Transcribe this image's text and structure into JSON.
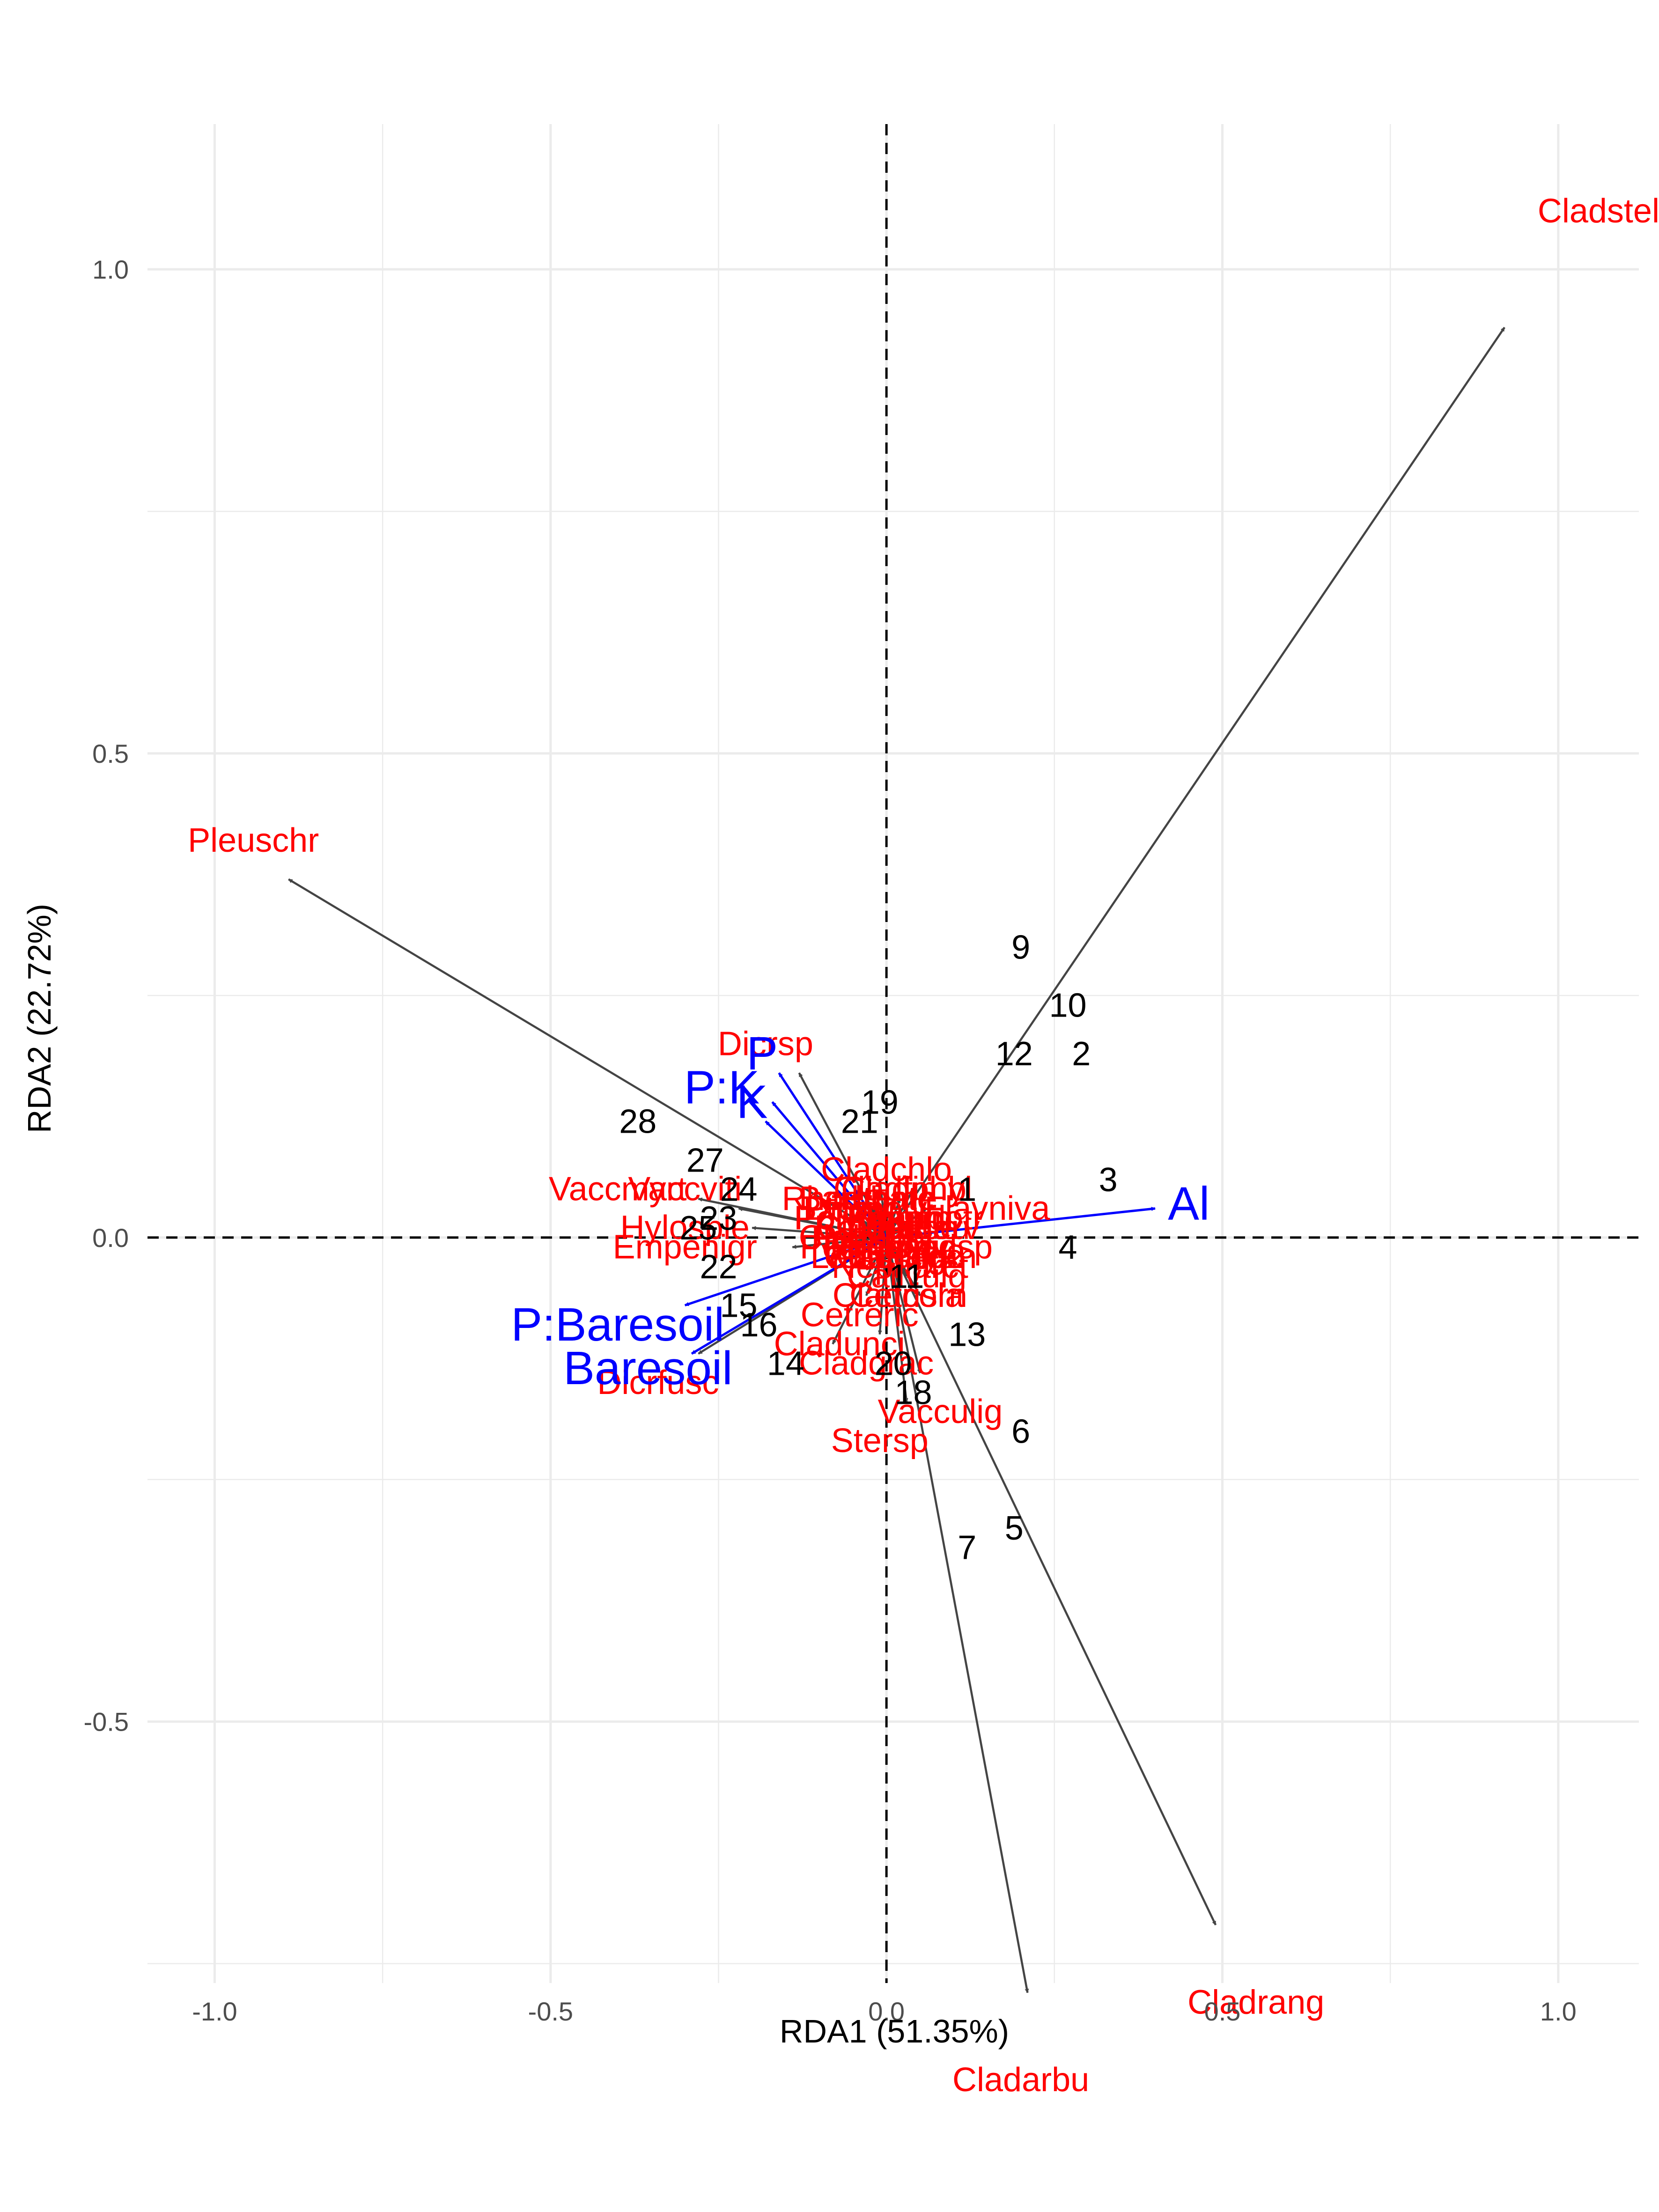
{
  "chart_data": {
    "type": "scatter",
    "xlabel": "RDA1 (51.35%)",
    "ylabel": "RDA2 (22.72%)",
    "xlim": [
      -1.0,
      1.0
    ],
    "ylim": [
      -0.5,
      1.0
    ],
    "xticks": [
      -1.0,
      -0.5,
      0.0,
      0.5,
      1.0
    ],
    "yticks": [
      -0.5,
      0.0,
      0.5,
      1.0
    ],
    "x_tick_labels": [
      "-1.0",
      "-0.5",
      "0.0",
      "0.5",
      "1.0"
    ],
    "y_tick_labels": [
      "-0.5",
      "0.0",
      "0.5",
      "1.0"
    ],
    "grid": true,
    "reference_lines": {
      "x": 0,
      "y": 0,
      "style": "dashed"
    },
    "colors": {
      "sites": "#000000",
      "species": "#ff0000",
      "species_arrows": "#444444",
      "environment": "#0000ff",
      "grid": "#ebebeb"
    },
    "site_scores": [
      {
        "label": "9",
        "x": 0.2,
        "y": 0.3
      },
      {
        "label": "10",
        "x": 0.27,
        "y": 0.24
      },
      {
        "label": "12",
        "x": 0.19,
        "y": 0.19
      },
      {
        "label": "2",
        "x": 0.29,
        "y": 0.19
      },
      {
        "label": "19",
        "x": -0.01,
        "y": 0.14
      },
      {
        "label": "21",
        "x": -0.04,
        "y": 0.12
      },
      {
        "label": "28",
        "x": -0.37,
        "y": 0.12
      },
      {
        "label": "27",
        "x": -0.27,
        "y": 0.08
      },
      {
        "label": "1",
        "x": 0.12,
        "y": 0.05
      },
      {
        "label": "3",
        "x": 0.33,
        "y": 0.06
      },
      {
        "label": "4",
        "x": 0.27,
        "y": -0.01
      },
      {
        "label": "25",
        "x": -0.28,
        "y": 0.01
      },
      {
        "label": "24",
        "x": -0.22,
        "y": 0.05
      },
      {
        "label": "23",
        "x": -0.25,
        "y": 0.02
      },
      {
        "label": "22",
        "x": -0.25,
        "y": -0.03
      },
      {
        "label": "13",
        "x": 0.12,
        "y": -0.1
      },
      {
        "label": "15",
        "x": -0.22,
        "y": -0.07
      },
      {
        "label": "16",
        "x": -0.19,
        "y": -0.09
      },
      {
        "label": "14",
        "x": -0.15,
        "y": -0.13
      },
      {
        "label": "20",
        "x": 0.01,
        "y": -0.13
      },
      {
        "label": "18",
        "x": 0.04,
        "y": -0.16
      },
      {
        "label": "11",
        "x": 0.03,
        "y": -0.04
      },
      {
        "label": "6",
        "x": 0.2,
        "y": -0.2
      },
      {
        "label": "5",
        "x": 0.19,
        "y": -0.3
      },
      {
        "label": "7",
        "x": 0.12,
        "y": -0.32
      }
    ],
    "species_scores": [
      {
        "label": "Cladstel",
        "x": 0.92,
        "y": 0.94,
        "tx": 1.06,
        "ty": 1.06,
        "anchor": "middle"
      },
      {
        "label": "Pleuschr",
        "x": -0.89,
        "y": 0.37,
        "tx": -1.04,
        "ty": 0.41,
        "anchor": "start"
      },
      {
        "label": "Cladrang",
        "x": 0.49,
        "y": -0.71,
        "tx": 0.55,
        "ty": -0.79,
        "anchor": "middle"
      },
      {
        "label": "Cladarbu",
        "x": 0.21,
        "y": -0.78,
        "tx": 0.2,
        "ty": -0.87,
        "anchor": "middle"
      },
      {
        "label": "Dicrsp",
        "x": -0.13,
        "y": 0.17,
        "tx": -0.18,
        "ty": 0.2,
        "anchor": "middle"
      },
      {
        "label": "Vaccviti",
        "x": -0.28,
        "y": 0.04,
        "tx": -0.3,
        "ty": 0.05,
        "anchor": "middle"
      },
      {
        "label": "Dicrfusc",
        "x": -0.28,
        "y": -0.12,
        "tx": -0.34,
        "ty": -0.15,
        "anchor": "middle"
      },
      {
        "label": "Vaccmyrt",
        "x": -0.22,
        "y": 0.03,
        "tx": -0.4,
        "ty": 0.05,
        "anchor": "middle"
      },
      {
        "label": "Empenigr",
        "x": -0.14,
        "y": -0.01,
        "tx": -0.3,
        "ty": -0.01,
        "anchor": "middle"
      },
      {
        "label": "Hylosple",
        "x": -0.2,
        "y": 0.01,
        "tx": -0.3,
        "ty": 0.01,
        "anchor": "middle"
      },
      {
        "label": "Vacculig",
        "x": 0.03,
        "y": -0.17,
        "tx": 0.08,
        "ty": -0.18,
        "anchor": "middle"
      },
      {
        "label": "Stersp",
        "x": 0.05,
        "y": -0.14,
        "tx": -0.01,
        "ty": -0.21,
        "anchor": "middle"
      },
      {
        "label": "Cladunci",
        "x": -0.08,
        "y": -0.11,
        "tx": -0.07,
        "ty": -0.11,
        "anchor": "middle"
      },
      {
        "label": "Cladgrac",
        "x": -0.01,
        "y": -0.1,
        "tx": -0.03,
        "ty": -0.13,
        "anchor": "middle"
      },
      {
        "label": "Cladchlo",
        "x": -0.01,
        "y": 0.06,
        "tx": 0.0,
        "ty": 0.07,
        "anchor": "middle"
      },
      {
        "label": "Cladfimb",
        "x": 0.04,
        "y": 0.05,
        "tx": 0.02,
        "ty": 0.05,
        "anchor": "middle"
      },
      {
        "label": "Cladcorn",
        "x": 0.04,
        "y": -0.05,
        "tx": 0.02,
        "ty": -0.06,
        "anchor": "middle"
      },
      {
        "label": "Cetrisla",
        "x": 0.05,
        "y": -0.06,
        "tx": 0.03,
        "ty": -0.06,
        "anchor": "middle"
      },
      {
        "label": "Cladcris",
        "x": -0.03,
        "y": -0.01,
        "tx": -0.04,
        "ty": 0.0,
        "anchor": "middle"
      },
      {
        "label": "Cladcerv",
        "x": 0.02,
        "y": 0.01,
        "tx": 0.04,
        "ty": 0.01,
        "anchor": "middle"
      },
      {
        "label": "Cladsp",
        "x": 0.02,
        "y": -0.03,
        "tx": 0.08,
        "ty": -0.01,
        "anchor": "middle"
      },
      {
        "label": "Cetreric",
        "x": -0.03,
        "y": -0.06,
        "tx": -0.04,
        "ty": -0.08,
        "anchor": "middle"
      },
      {
        "label": "Flavniva",
        "x": 0.06,
        "y": 0.03,
        "tx": 0.15,
        "ty": 0.03,
        "anchor": "middle"
      },
      {
        "label": "Cladbotr",
        "x": 0.03,
        "y": 0.01,
        "tx": 0.05,
        "ty": 0.02,
        "anchor": "middle"
      },
      {
        "label": "Nepharct",
        "x": 0.01,
        "y": -0.02,
        "tx": 0.02,
        "ty": -0.03,
        "anchor": "middle"
      },
      {
        "label": "Polyjuni",
        "x": -0.04,
        "y": 0.01,
        "tx": -0.05,
        "ty": 0.02,
        "anchor": "middle"
      },
      {
        "label": "Callvulg",
        "x": 0.03,
        "y": -0.04,
        "tx": 0.03,
        "ty": -0.04,
        "anchor": "middle"
      },
      {
        "label": "Rhodtome",
        "x": -0.03,
        "y": 0.04,
        "tx": -0.04,
        "ty": 0.04,
        "anchor": "middle"
      },
      {
        "label": "Ptilcili",
        "x": -0.04,
        "y": 0.02,
        "tx": -0.06,
        "ty": 0.03,
        "anchor": "middle"
      },
      {
        "label": "Barbhatc",
        "x": -0.02,
        "y": 0.03,
        "tx": -0.03,
        "ty": 0.04,
        "anchor": "middle"
      },
      {
        "label": "Cladcocc",
        "x": 0.01,
        "y": -0.01,
        "tx": 0.01,
        "ty": -0.02,
        "anchor": "middle"
      },
      {
        "label": "Cladamau",
        "x": 0.01,
        "y": 0.01,
        "tx": 0.01,
        "ty": 0.01,
        "anchor": "middle"
      },
      {
        "label": "Pohlnuta",
        "x": -0.02,
        "y": -0.01,
        "tx": -0.03,
        "ty": -0.01,
        "anchor": "middle"
      },
      {
        "label": "Polypili",
        "x": 0.01,
        "y": 0.02,
        "tx": 0.02,
        "ty": 0.02,
        "anchor": "middle"
      },
      {
        "label": "Polycomm",
        "x": -0.01,
        "y": 0.02,
        "tx": -0.02,
        "ty": 0.02,
        "anchor": "middle"
      },
      {
        "label": "Peltapht",
        "x": -0.01,
        "y": 0.0,
        "tx": -0.02,
        "ty": 0.0,
        "anchor": "middle"
      },
      {
        "label": "Icmaeric",
        "x": 0.01,
        "y": -0.01,
        "tx": 0.01,
        "ty": -0.01,
        "anchor": "middle"
      },
      {
        "label": "Cladcyan",
        "x": 0.02,
        "y": -0.02,
        "tx": 0.03,
        "ty": -0.02,
        "anchor": "middle"
      },
      {
        "label": "Cladphyl",
        "x": 0.02,
        "y": 0.04,
        "tx": 0.03,
        "ty": 0.05,
        "anchor": "middle"
      },
      {
        "label": "Dicrpoly",
        "x": -0.02,
        "y": 0.02,
        "tx": -0.03,
        "ty": 0.03,
        "anchor": "middle"
      },
      {
        "label": "Betupube",
        "x": 0.0,
        "y": 0.01,
        "tx": 0.0,
        "ty": 0.01,
        "anchor": "middle"
      },
      {
        "label": "Vacculig2",
        "x": 0.0,
        "y": 0.0,
        "tx": 0.01,
        "ty": -0.02,
        "anchor": "middle"
      },
      {
        "label": "Ledupalu",
        "x": -0.01,
        "y": -0.01,
        "tx": -0.01,
        "ty": -0.02,
        "anchor": "middle"
      },
      {
        "label": "Pinusylv",
        "x": 0.0,
        "y": -0.01,
        "tx": 0.0,
        "ty": -0.01,
        "anchor": "middle"
      }
    ],
    "environment_vectors": [
      {
        "label": "Al",
        "x": 0.4,
        "y": 0.03,
        "tx": 0.45,
        "ty": 0.035,
        "anchor": "middle"
      },
      {
        "label": "P",
        "x": -0.16,
        "y": 0.17,
        "tx": -0.185,
        "ty": 0.19,
        "anchor": "middle"
      },
      {
        "label": "K",
        "x": -0.18,
        "y": 0.12,
        "tx": -0.2,
        "ty": 0.14,
        "anchor": "middle"
      },
      {
        "label": "P:K",
        "x": -0.17,
        "y": 0.14,
        "tx": -0.245,
        "ty": 0.155,
        "anchor": "middle"
      },
      {
        "label": "Baresoil",
        "x": -0.29,
        "y": -0.12,
        "tx": -0.355,
        "ty": -0.135,
        "anchor": "middle"
      },
      {
        "label": "P:Baresoil",
        "x": -0.3,
        "y": -0.07,
        "tx": -0.4,
        "ty": -0.09,
        "anchor": "middle"
      }
    ]
  }
}
